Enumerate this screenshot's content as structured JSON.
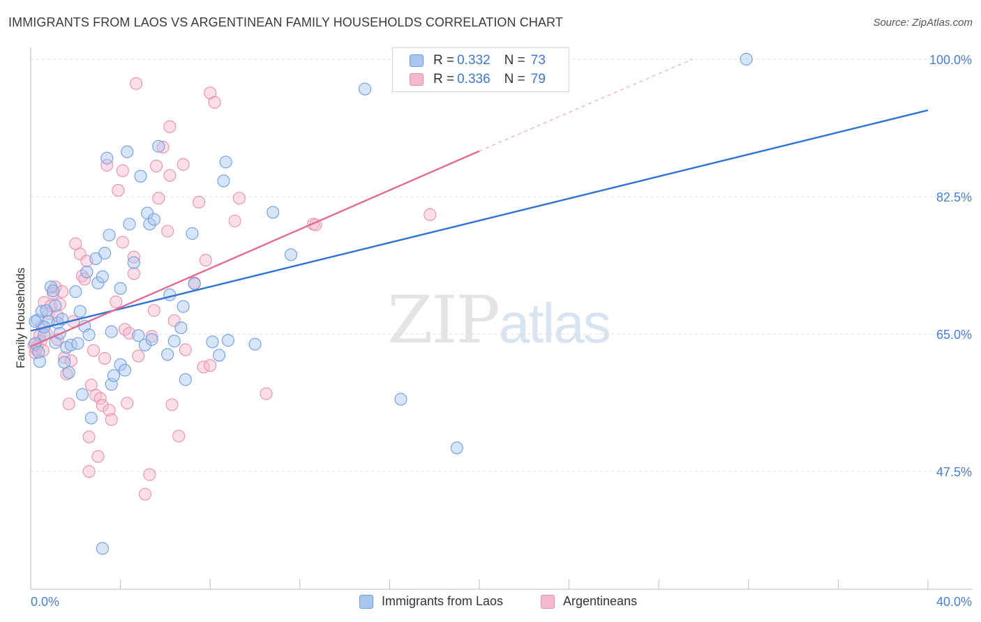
{
  "title": "IMMIGRANTS FROM LAOS VS ARGENTINEAN FAMILY HOUSEHOLDS CORRELATION CHART",
  "source": "Source: ZipAtlas.com",
  "watermark": {
    "zip": "ZIP",
    "atlas": "atlas"
  },
  "legend": {
    "blue": {
      "r_label": "R =",
      "r_value": "0.332",
      "n_label": "N =",
      "n_value": "73"
    },
    "pink": {
      "r_label": "R =",
      "r_value": "0.336",
      "n_label": "N =",
      "n_value": "79"
    }
  },
  "bottom_legend": {
    "blue": "Immigrants from Laos",
    "pink": "Argentineans"
  },
  "colors": {
    "blue_fill": "#a9c6ef",
    "blue_stroke": "#6f9ee0",
    "blue_line": "#2f74d0",
    "pink_fill": "#f6b9cc",
    "pink_stroke": "#e98fac",
    "pink_line": "#e06b95",
    "tick_text": "#4a7fd0",
    "grid": "#dddddd"
  },
  "chart_data": {
    "type": "scatter",
    "title": "IMMIGRANTS FROM LAOS VS ARGENTINEAN FAMILY HOUSEHOLDS CORRELATION CHART",
    "xlabel": "",
    "ylabel": "Family Households",
    "xlim": [
      0,
      40
    ],
    "ylim": [
      32.5,
      101.5
    ],
    "x_tick_labels": [
      "0.0%",
      "40.0%"
    ],
    "y_ticks": [
      47.5,
      65.0,
      82.5,
      100.0
    ],
    "y_tick_labels": [
      "47.5%",
      "65.0%",
      "82.5%",
      "100.0%"
    ],
    "series": [
      {
        "name": "Immigrants from Laos",
        "R": 0.332,
        "N": 73,
        "trend": {
          "x": [
            0,
            40
          ],
          "y": [
            65.4,
            93.5
          ]
        },
        "points": [
          [
            0.2,
            63.8
          ],
          [
            0.3,
            66.8
          ],
          [
            0.4,
            61.5
          ],
          [
            0.5,
            67.9
          ],
          [
            0.6,
            64.9
          ],
          [
            0.7,
            68.0
          ],
          [
            0.8,
            66.6
          ],
          [
            0.9,
            71.0
          ],
          [
            1.0,
            70.5
          ],
          [
            1.1,
            63.9
          ],
          [
            1.2,
            66.4
          ],
          [
            1.3,
            65.1
          ],
          [
            1.4,
            66.9
          ],
          [
            1.5,
            61.4
          ],
          [
            1.6,
            63.3
          ],
          [
            1.7,
            60.1
          ],
          [
            1.8,
            63.6
          ],
          [
            2.0,
            70.4
          ],
          [
            2.1,
            63.8
          ],
          [
            2.2,
            67.9
          ],
          [
            2.3,
            57.3
          ],
          [
            2.4,
            66.0
          ],
          [
            2.5,
            72.9
          ],
          [
            2.6,
            64.9
          ],
          [
            2.7,
            54.3
          ],
          [
            2.9,
            74.6
          ],
          [
            3.0,
            71.5
          ],
          [
            3.2,
            72.3
          ],
          [
            3.3,
            75.3
          ],
          [
            3.4,
            87.4
          ],
          [
            3.5,
            77.6
          ],
          [
            3.6,
            65.3
          ],
          [
            3.6,
            58.6
          ],
          [
            3.7,
            59.7
          ],
          [
            4.0,
            61.1
          ],
          [
            4.0,
            70.8
          ],
          [
            4.2,
            60.4
          ],
          [
            4.3,
            88.2
          ],
          [
            4.4,
            79.0
          ],
          [
            4.6,
            74.1
          ],
          [
            4.8,
            64.8
          ],
          [
            4.9,
            85.1
          ],
          [
            5.1,
            63.6
          ],
          [
            5.2,
            80.4
          ],
          [
            5.3,
            79.0
          ],
          [
            5.4,
            64.3
          ],
          [
            5.5,
            79.6
          ],
          [
            5.7,
            88.9
          ],
          [
            6.1,
            62.4
          ],
          [
            6.2,
            70.0
          ],
          [
            6.4,
            64.1
          ],
          [
            6.7,
            65.8
          ],
          [
            6.8,
            68.5
          ],
          [
            6.9,
            59.2
          ],
          [
            7.2,
            77.8
          ],
          [
            7.3,
            71.4
          ],
          [
            8.1,
            64.0
          ],
          [
            8.4,
            62.3
          ],
          [
            8.6,
            84.5
          ],
          [
            8.7,
            86.9
          ],
          [
            8.8,
            64.2
          ],
          [
            10.0,
            63.7
          ],
          [
            10.8,
            80.5
          ],
          [
            11.6,
            75.1
          ],
          [
            14.9,
            96.2
          ],
          [
            16.5,
            56.7
          ],
          [
            19.0,
            50.5
          ],
          [
            31.9,
            100.0
          ],
          [
            3.2,
            37.7
          ],
          [
            0.2,
            66.6
          ],
          [
            0.6,
            65.9
          ],
          [
            1.1,
            68.6
          ],
          [
            0.35,
            62.7
          ]
        ]
      },
      {
        "name": "Argentineans",
        "R": 0.336,
        "N": 79,
        "trend": {
          "x": [
            0,
            20
          ],
          "y": [
            63.4,
            88.3
          ]
        },
        "trend_extension": {
          "x": [
            20,
            29.5
          ],
          "y": [
            88.3,
            100.0
          ]
        },
        "points": [
          [
            0.2,
            62.6
          ],
          [
            0.3,
            63.5
          ],
          [
            0.4,
            64.8
          ],
          [
            0.5,
            66.0
          ],
          [
            0.6,
            69.0
          ],
          [
            0.7,
            65.1
          ],
          [
            0.8,
            67.6
          ],
          [
            0.9,
            68.6
          ],
          [
            1.0,
            70.2
          ],
          [
            1.1,
            71.0
          ],
          [
            1.2,
            67.3
          ],
          [
            1.3,
            68.8
          ],
          [
            1.4,
            70.4
          ],
          [
            1.5,
            62.0
          ],
          [
            1.6,
            59.9
          ],
          [
            1.7,
            56.1
          ],
          [
            1.8,
            61.6
          ],
          [
            1.9,
            66.6
          ],
          [
            2.0,
            76.5
          ],
          [
            2.2,
            75.2
          ],
          [
            2.3,
            72.4
          ],
          [
            2.4,
            72.0
          ],
          [
            2.5,
            74.3
          ],
          [
            2.6,
            51.9
          ],
          [
            2.6,
            47.5
          ],
          [
            2.7,
            58.5
          ],
          [
            2.8,
            62.9
          ],
          [
            2.9,
            57.2
          ],
          [
            3.0,
            49.4
          ],
          [
            3.1,
            56.8
          ],
          [
            3.2,
            55.9
          ],
          [
            3.3,
            61.9
          ],
          [
            3.4,
            86.5
          ],
          [
            3.5,
            55.3
          ],
          [
            3.6,
            54.1
          ],
          [
            3.8,
            69.1
          ],
          [
            3.9,
            83.3
          ],
          [
            4.1,
            76.7
          ],
          [
            4.1,
            85.8
          ],
          [
            4.2,
            65.6
          ],
          [
            4.3,
            56.2
          ],
          [
            4.4,
            65.1
          ],
          [
            4.6,
            74.8
          ],
          [
            4.6,
            72.7
          ],
          [
            4.7,
            96.9
          ],
          [
            4.8,
            62.2
          ],
          [
            5.1,
            44.6
          ],
          [
            5.3,
            47.1
          ],
          [
            5.4,
            64.7
          ],
          [
            5.5,
            68.0
          ],
          [
            5.6,
            86.4
          ],
          [
            5.7,
            82.3
          ],
          [
            5.9,
            88.8
          ],
          [
            6.1,
            78.1
          ],
          [
            6.2,
            91.4
          ],
          [
            6.2,
            85.2
          ],
          [
            6.3,
            56.0
          ],
          [
            6.4,
            66.7
          ],
          [
            6.6,
            52.0
          ],
          [
            6.8,
            86.6
          ],
          [
            6.9,
            63.0
          ],
          [
            7.3,
            71.5
          ],
          [
            7.5,
            81.8
          ],
          [
            7.7,
            60.8
          ],
          [
            7.8,
            74.4
          ],
          [
            8.0,
            61.0
          ],
          [
            8.0,
            95.7
          ],
          [
            8.2,
            94.5
          ],
          [
            9.1,
            79.4
          ],
          [
            9.3,
            82.3
          ],
          [
            10.5,
            57.4
          ],
          [
            12.6,
            79.0
          ],
          [
            12.7,
            78.9
          ],
          [
            17.8,
            80.2
          ],
          [
            0.25,
            63.1
          ],
          [
            0.45,
            64.1
          ],
          [
            0.55,
            62.9
          ],
          [
            1.2,
            64.3
          ],
          [
            0.15,
            63.6
          ]
        ]
      }
    ]
  }
}
